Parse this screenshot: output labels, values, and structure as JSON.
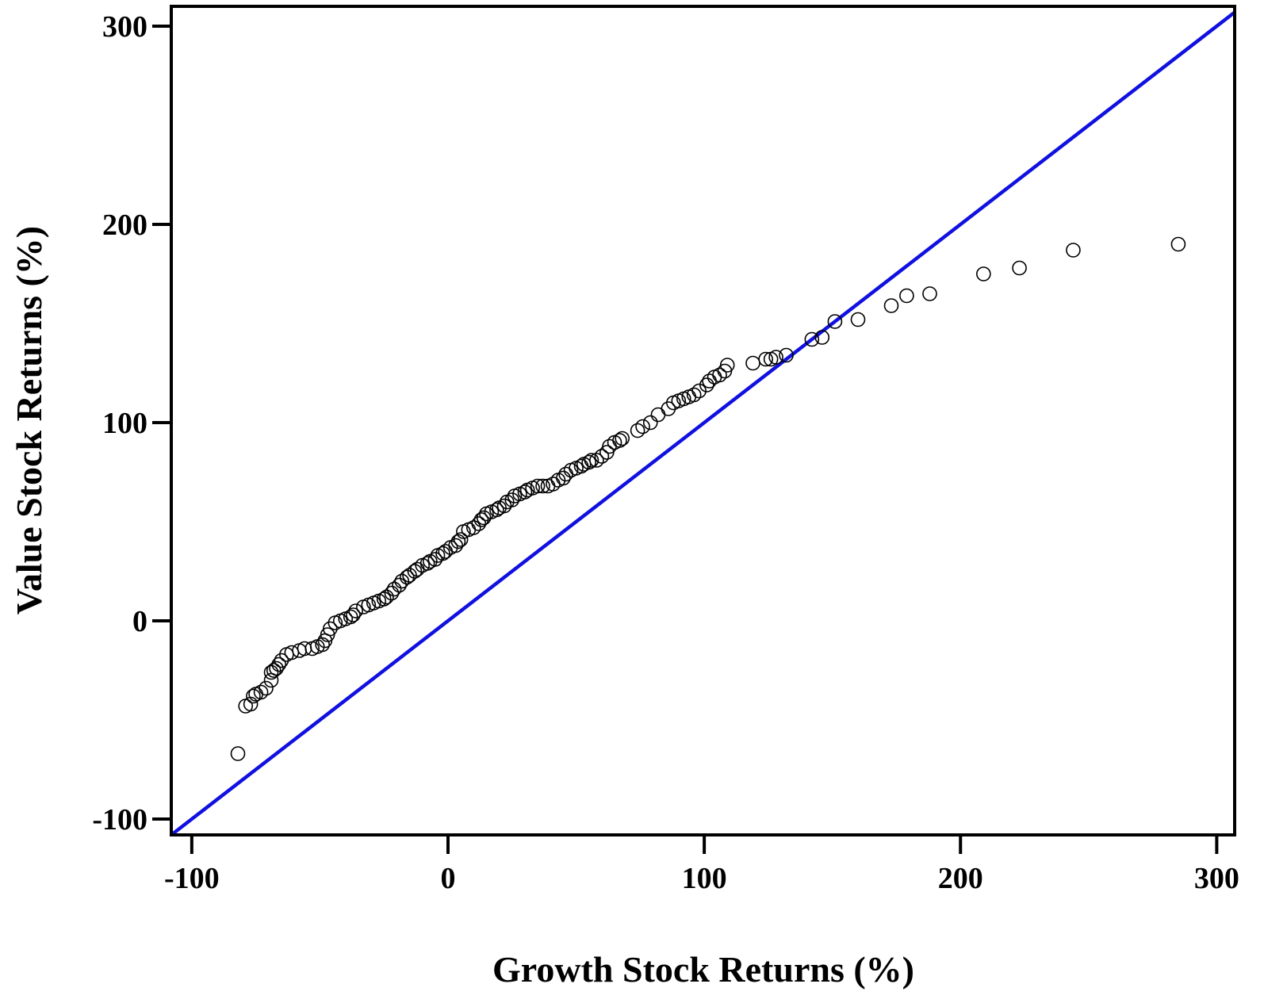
{
  "chart_data": {
    "type": "scatter",
    "title": "",
    "xlabel": "Growth Stock Returns (%)",
    "ylabel": "Value Stock Returns (%)",
    "xlim": [
      -108,
      307
    ],
    "ylim": [
      -108,
      310
    ],
    "x_ticks": [
      -100,
      0,
      100,
      200,
      300
    ],
    "y_ticks": [
      -100,
      0,
      100,
      200,
      300
    ],
    "x_tick_labels": [
      "-100",
      "0",
      "100",
      "200",
      "300"
    ],
    "y_tick_labels": [
      "-100",
      "0",
      "100",
      "200",
      "300"
    ],
    "grid": false,
    "marker": "open-circle",
    "marker_color": "#000000",
    "reference_line": {
      "type": "identity",
      "x": [
        -108,
        307
      ],
      "y": [
        -108,
        307
      ],
      "color": "#1010e0"
    },
    "points": [
      [
        -82,
        -67
      ],
      [
        -79,
        -43
      ],
      [
        -77,
        -42
      ],
      [
        -76,
        -38
      ],
      [
        -75,
        -37
      ],
      [
        -73,
        -36
      ],
      [
        -71,
        -34
      ],
      [
        -69,
        -30
      ],
      [
        -69,
        -26
      ],
      [
        -68,
        -25
      ],
      [
        -67,
        -24
      ],
      [
        -66,
        -22
      ],
      [
        -65,
        -20
      ],
      [
        -63,
        -17
      ],
      [
        -61,
        -16
      ],
      [
        -58,
        -15
      ],
      [
        -56,
        -14
      ],
      [
        -53,
        -14
      ],
      [
        -51,
        -13
      ],
      [
        -49,
        -12
      ],
      [
        -48,
        -10
      ],
      [
        -47,
        -7
      ],
      [
        -46,
        -4
      ],
      [
        -44,
        -1
      ],
      [
        -42,
        0
      ],
      [
        -40,
        1
      ],
      [
        -38,
        2
      ],
      [
        -37,
        3
      ],
      [
        -36,
        5
      ],
      [
        -33,
        7
      ],
      [
        -31,
        8
      ],
      [
        -29,
        9
      ],
      [
        -27,
        10
      ],
      [
        -25,
        11
      ],
      [
        -24,
        12
      ],
      [
        -22,
        14
      ],
      [
        -21,
        16
      ],
      [
        -19,
        18
      ],
      [
        -18,
        20
      ],
      [
        -16,
        22
      ],
      [
        -15,
        23
      ],
      [
        -13,
        25
      ],
      [
        -12,
        26
      ],
      [
        -10,
        28
      ],
      [
        -8,
        29
      ],
      [
        -7,
        30
      ],
      [
        -5,
        31
      ],
      [
        -4,
        33
      ],
      [
        -2,
        34
      ],
      [
        -1,
        35
      ],
      [
        1,
        37
      ],
      [
        3,
        38
      ],
      [
        4,
        40
      ],
      [
        5,
        41
      ],
      [
        6,
        45
      ],
      [
        8,
        46
      ],
      [
        10,
        47
      ],
      [
        12,
        49
      ],
      [
        13,
        51
      ],
      [
        14,
        52
      ],
      [
        15,
        54
      ],
      [
        17,
        55
      ],
      [
        19,
        56
      ],
      [
        20,
        57
      ],
      [
        22,
        58
      ],
      [
        23,
        60
      ],
      [
        25,
        61
      ],
      [
        26,
        63
      ],
      [
        28,
        64
      ],
      [
        30,
        65
      ],
      [
        31,
        66
      ],
      [
        33,
        67
      ],
      [
        35,
        68
      ],
      [
        37,
        68
      ],
      [
        39,
        68
      ],
      [
        41,
        69
      ],
      [
        43,
        71
      ],
      [
        45,
        72
      ],
      [
        46,
        74
      ],
      [
        48,
        76
      ],
      [
        50,
        77
      ],
      [
        52,
        78
      ],
      [
        53,
        79
      ],
      [
        55,
        80
      ],
      [
        56,
        81
      ],
      [
        58,
        81
      ],
      [
        60,
        83
      ],
      [
        62,
        85
      ],
      [
        63,
        88
      ],
      [
        65,
        90
      ],
      [
        67,
        91
      ],
      [
        68,
        92
      ],
      [
        74,
        96
      ],
      [
        76,
        98
      ],
      [
        79,
        100
      ],
      [
        82,
        104
      ],
      [
        86,
        107
      ],
      [
        88,
        110
      ],
      [
        90,
        111
      ],
      [
        92,
        112
      ],
      [
        94,
        113
      ],
      [
        96,
        114
      ],
      [
        98,
        116
      ],
      [
        101,
        119
      ],
      [
        102,
        121
      ],
      [
        104,
        123
      ],
      [
        106,
        124
      ],
      [
        108,
        126
      ],
      [
        109,
        129
      ],
      [
        119,
        130
      ],
      [
        124,
        132
      ],
      [
        126,
        132
      ],
      [
        128,
        133
      ],
      [
        132,
        134
      ],
      [
        142,
        142
      ],
      [
        146,
        143
      ],
      [
        151,
        151
      ],
      [
        160,
        152
      ],
      [
        173,
        159
      ],
      [
        179,
        164
      ],
      [
        188,
        165
      ],
      [
        209,
        175
      ],
      [
        223,
        178
      ],
      [
        244,
        187
      ],
      [
        285,
        190
      ]
    ]
  },
  "colors": {
    "axis": "#000000",
    "reference_line": "#1010e0",
    "marker": "#000000"
  }
}
